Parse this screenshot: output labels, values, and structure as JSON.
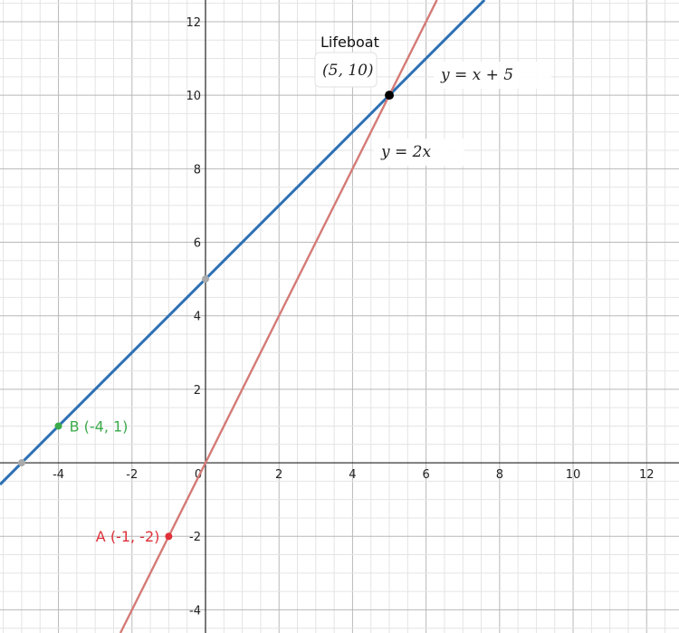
{
  "chart_data": {
    "type": "line",
    "xlim": [
      -5.59,
      12.88
    ],
    "ylim": [
      -4.63,
      12.59
    ],
    "grid": true,
    "x_ticks": [
      "-4",
      "-2",
      "0",
      "2",
      "4",
      "6",
      "8",
      "10",
      "12"
    ],
    "y_ticks": [
      "-4",
      "-2",
      "2",
      "4",
      "6",
      "8",
      "10",
      "12"
    ],
    "series": [
      {
        "name": "y = x + 5",
        "slope": 1,
        "intercept": 5,
        "color": "#2d70b3"
      },
      {
        "name": "y = 2x",
        "slope": 2,
        "intercept": 0,
        "color": "#d47b77"
      }
    ],
    "points": [
      {
        "label": "Lifeboat",
        "coords": "(5, 10)",
        "x": 5,
        "y": 10,
        "color": "#000000"
      },
      {
        "label": "B (-4, 1)",
        "x": -4,
        "y": 1,
        "color": "#3aaa4a"
      },
      {
        "label": "A (-1, -2)",
        "x": -1,
        "y": -2,
        "color": "#e0303a"
      },
      {
        "label": "",
        "x": 0,
        "y": 5,
        "color": "#aaaaaa"
      },
      {
        "label": "",
        "x": -5,
        "y": 0,
        "color": "#aaaaaa"
      }
    ]
  }
}
